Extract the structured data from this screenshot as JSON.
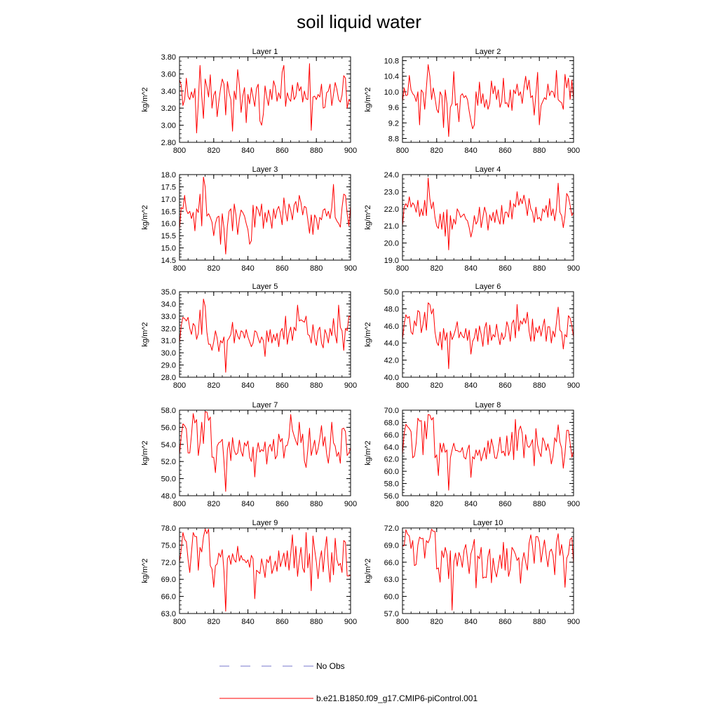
{
  "title": "soil liquid water",
  "legend": {
    "obs_label": "No Obs",
    "obs_color": "#7777cc",
    "model_label": "b.e21.B1850.f09_g17.CMIP6-piControl.001",
    "model_color": "#ff0000"
  },
  "chart_data": [
    {
      "type": "line",
      "title": "Layer 1",
      "ylabel": "kg/m^2",
      "xlim": [
        800,
        900
      ],
      "xticks": [
        "800",
        "820",
        "840",
        "860",
        "880",
        "900"
      ],
      "ylim": [
        2.8,
        3.8
      ],
      "yticks": [
        "2.80",
        "3.00",
        "3.20",
        "3.40",
        "3.60",
        "3.80"
      ],
      "x_start": 800,
      "x_step": 1,
      "values": [
        3.53,
        3.47,
        3.23,
        3.3,
        3.55,
        3.34,
        3.3,
        3.39,
        3.32,
        3.43,
        2.91,
        3.27,
        3.7,
        3.34,
        3.08,
        3.54,
        3.45,
        3.33,
        3.59,
        3.2,
        3.35,
        3.4,
        3.1,
        3.28,
        3.43,
        3.54,
        3.48,
        3.12,
        3.51,
        3.38,
        3.3,
        2.93,
        3.4,
        3.3,
        3.65,
        3.47,
        3.15,
        3.34,
        3.44,
        3.03,
        3.36,
        3.25,
        3.44,
        3.33,
        3.22,
        3.43,
        3.48,
        3.05,
        3.0,
        3.13,
        3.46,
        3.33,
        3.23,
        3.42,
        3.3,
        3.52,
        3.45,
        3.28,
        3.38,
        3.31,
        3.62,
        3.7,
        3.22,
        3.38,
        3.31,
        3.28,
        3.47,
        3.3,
        3.34,
        3.5,
        3.4,
        3.45,
        3.27,
        3.4,
        3.31,
        3.3,
        3.72,
        2.94,
        3.33,
        3.34,
        3.3,
        3.36,
        3.33,
        3.48,
        3.2,
        3.21,
        3.38,
        3.4,
        3.48,
        3.23,
        3.36,
        3.5,
        3.42,
        3.3,
        3.27,
        3.35,
        3.58,
        3.55,
        3.2,
        3.3,
        3.27
      ]
    },
    {
      "type": "line",
      "title": "Layer 2",
      "ylabel": "kg/m^2",
      "xlim": [
        800,
        900
      ],
      "xticks": [
        "800",
        "820",
        "840",
        "860",
        "880",
        "900"
      ],
      "ylim": [
        8.7,
        10.9
      ],
      "yticks": [
        "8.8",
        "9.2",
        "9.6",
        "10.0",
        "10.4",
        "10.8"
      ],
      "x_start": 800,
      "x_step": 1,
      "values": [
        9.75,
        10.1,
        9.9,
        9.92,
        10.42,
        10.05,
        9.95,
        9.9,
        9.75,
        10.0,
        9.15,
        10.05,
        9.98,
        9.55,
        10.12,
        10.7,
        10.4,
        9.8,
        10.1,
        9.85,
        9.55,
        9.46,
        10.0,
        9.9,
        9.08,
        10.05,
        9.7,
        8.85,
        9.6,
        9.7,
        10.52,
        9.65,
        9.7,
        9.23,
        9.9,
        9.95,
        9.85,
        9.9,
        9.8,
        9.5,
        9.25,
        9.05,
        9.15,
        10.0,
        9.65,
        10.25,
        9.7,
        9.95,
        9.6,
        9.8,
        9.55,
        9.7,
        10.28,
        9.95,
        10.15,
        9.8,
        10.05,
        9.6,
        9.75,
        10.35,
        9.7,
        9.72,
        9.6,
        10.05,
        9.52,
        10.05,
        9.95,
        10.2,
        9.9,
        10.0,
        9.7,
        10.1,
        10.4,
        10.05,
        10.3,
        9.85,
        9.9,
        9.4,
        9.95,
        10.5,
        9.15,
        9.65,
        9.75,
        9.85,
        9.8,
        10.2,
        9.9,
        10.02,
        10.0,
        9.85,
        10.55,
        9.8,
        9.75,
        9.72,
        9.55,
        10.45,
        10.1,
        10.35,
        9.8,
        10.3,
        9.8
      ]
    },
    {
      "type": "line",
      "title": "Layer 3",
      "ylabel": "kg/m^2",
      "xlim": [
        800,
        900
      ],
      "xticks": [
        "800",
        "820",
        "840",
        "860",
        "880",
        "900"
      ],
      "ylim": [
        14.5,
        18.0
      ],
      "yticks": [
        "14.5",
        "15.0",
        "15.5",
        "16.0",
        "16.5",
        "17.0",
        "17.5",
        "18.0"
      ],
      "x_start": 800,
      "x_step": 1,
      "values": [
        15.75,
        16.65,
        16.6,
        17.15,
        16.55,
        16.4,
        16.5,
        16.2,
        16.45,
        15.7,
        16.6,
        16.45,
        17.2,
        15.9,
        17.9,
        17.5,
        16.3,
        16.4,
        16.25,
        16.05,
        15.5,
        16.0,
        16.25,
        16.3,
        15.15,
        16.4,
        15.8,
        14.75,
        15.9,
        16.5,
        16.6,
        15.7,
        16.8,
        16.35,
        15.55,
        16.2,
        16.55,
        16.45,
        16.3,
        16.0,
        15.75,
        15.15,
        15.3,
        16.75,
        15.85,
        16.7,
        16.55,
        16.3,
        16.8,
        15.8,
        16.45,
        16.05,
        16.55,
        16.25,
        15.8,
        16.6,
        16.2,
        16.55,
        16.7,
        16.4,
        15.95,
        17.05,
        16.5,
        16.1,
        16.8,
        16.55,
        16.15,
        16.75,
        16.9,
        16.45,
        17.15,
        16.85,
        16.35,
        16.7,
        16.65,
        16.15,
        15.6,
        16.35,
        15.55,
        16.35,
        16.2,
        15.75,
        16.25,
        16.15,
        16.55,
        16.6,
        16.3,
        16.5,
        16.2,
        16.65,
        17.6,
        16.25,
        16.1,
        16.0,
        15.85,
        16.65,
        17.2,
        17.15,
        16.4,
        15.9,
        16.7
      ]
    },
    {
      "type": "line",
      "title": "Layer 4",
      "ylabel": "kg/m^2",
      "xlim": [
        800,
        900
      ],
      "xticks": [
        "800",
        "820",
        "840",
        "860",
        "880",
        "900"
      ],
      "ylim": [
        19.0,
        24.0
      ],
      "yticks": [
        "19.0",
        "20.0",
        "21.0",
        "22.0",
        "23.0",
        "24.0"
      ],
      "x_start": 800,
      "x_step": 1,
      "values": [
        21.0,
        22.1,
        22.3,
        22.1,
        22.7,
        22.1,
        22.35,
        22.2,
        21.8,
        22.5,
        21.55,
        22.0,
        21.6,
        22.5,
        21.6,
        23.8,
        22.6,
        22.0,
        22.4,
        21.5,
        21.0,
        20.85,
        21.7,
        20.8,
        21.8,
        20.4,
        21.95,
        19.6,
        21.6,
        20.8,
        21.4,
        21.1,
        22.0,
        21.8,
        21.5,
        21.6,
        21.7,
        21.4,
        21.3,
        20.9,
        20.35,
        20.8,
        21.6,
        21.1,
        21.3,
        22.1,
        20.9,
        21.5,
        22.1,
        21.7,
        20.75,
        21.65,
        21.3,
        21.8,
        21.2,
        21.95,
        21.4,
        21.1,
        22.2,
        21.1,
        21.8,
        21.8,
        21.5,
        22.5,
        21.4,
        22.3,
        22.1,
        23.0,
        22.2,
        22.6,
        22.3,
        22.8,
        22.3,
        21.6,
        22.6,
        22.0,
        21.8,
        21.2,
        22.1,
        21.4,
        21.5,
        21.3,
        22.0,
        21.8,
        22.2,
        21.5,
        22.6,
        21.6,
        22.0,
        21.3,
        22.0,
        23.5,
        21.8,
        21.6,
        20.9,
        21.6,
        22.9,
        22.7,
        22.2,
        21.6,
        21.8
      ]
    },
    {
      "type": "line",
      "title": "Layer 5",
      "ylabel": "kg/m^2",
      "xlim": [
        800,
        900
      ],
      "xticks": [
        "800",
        "820",
        "840",
        "860",
        "880",
        "900"
      ],
      "ylim": [
        28.0,
        35.0
      ],
      "yticks": [
        "28.0",
        "29.0",
        "30.0",
        "31.0",
        "32.0",
        "33.0",
        "34.0",
        "35.0"
      ],
      "x_start": 800,
      "x_step": 1,
      "values": [
        30.8,
        32.2,
        32.9,
        32.8,
        32.6,
        32.9,
        32.0,
        31.5,
        32.4,
        32.2,
        31.1,
        31.6,
        33.5,
        31.5,
        34.4,
        33.8,
        31.7,
        30.7,
        30.7,
        30.2,
        30.9,
        31.8,
        31.2,
        30.1,
        31.0,
        30.8,
        31.3,
        28.4,
        31.0,
        31.2,
        31.5,
        32.5,
        30.8,
        31.9,
        31.4,
        31.1,
        31.8,
        31.7,
        31.2,
        31.9,
        31.3,
        30.9,
        30.5,
        30.8,
        31.8,
        31.7,
        31.2,
        30.8,
        31.3,
        31.0,
        29.7,
        31.8,
        30.9,
        31.9,
        30.8,
        31.5,
        31.0,
        31.6,
        30.5,
        31.7,
        32.0,
        31.1,
        33.0,
        30.7,
        31.6,
        32.1,
        31.0,
        32.1,
        31.8,
        33.9,
        32.6,
        32.7,
        32.6,
        32.5,
        33.0,
        31.5,
        31.4,
        30.8,
        32.3,
        31.2,
        30.6,
        31.8,
        32.1,
        30.8,
        30.4,
        31.9,
        31.5,
        30.8,
        32.0,
        31.4,
        32.8,
        31.5,
        30.8,
        33.9,
        32.1,
        31.8,
        30.2,
        32.0,
        31.8,
        33.0,
        32.9
      ]
    },
    {
      "type": "line",
      "title": "Layer 6",
      "ylabel": "kg/m^2",
      "xlim": [
        800,
        900
      ],
      "xticks": [
        "800",
        "820",
        "840",
        "860",
        "880",
        "900"
      ],
      "ylim": [
        40.0,
        50.0
      ],
      "yticks": [
        "40.0",
        "42.0",
        "44.0",
        "46.0",
        "48.0",
        "50.0"
      ],
      "x_start": 800,
      "x_step": 1,
      "values": [
        44.4,
        46.2,
        47.3,
        46.9,
        47.1,
        45.3,
        45.0,
        46.6,
        46.0,
        47.8,
        47.6,
        45.2,
        46.2,
        47.6,
        45.5,
        48.7,
        48.5,
        47.4,
        48.0,
        45.3,
        44.1,
        43.7,
        45.3,
        43.2,
        45.7,
        44.3,
        45.2,
        41.0,
        45.4,
        44.4,
        44.9,
        45.6,
        46.5,
        44.6,
        45.3,
        44.8,
        44.6,
        45.7,
        44.3,
        45.5,
        42.7,
        44.2,
        44.6,
        45.7,
        44.2,
        46.0,
        45.0,
        43.6,
        45.7,
        46.4,
        43.8,
        46.1,
        44.3,
        45.0,
        44.7,
        46.2,
        44.8,
        43.8,
        45.2,
        44.4,
        44.8,
        46.5,
        45.8,
        44.2,
        46.3,
        46.7,
        44.6,
        48.5,
        45.4,
        46.6,
        46.2,
        46.9,
        46.3,
        47.6,
        45.4,
        44.2,
        46.8,
        44.2,
        45.8,
        45.2,
        46.0,
        44.8,
        45.9,
        46.8,
        44.2,
        45.9,
        45.9,
        44.0,
        45.4,
        44.7,
        46.4,
        48.2,
        45.5,
        45.3,
        43.3,
        45.0,
        44.7,
        47.2,
        46.9,
        46.0,
        44.7
      ]
    },
    {
      "type": "line",
      "title": "Layer 7",
      "ylabel": "kg/m^2",
      "xlim": [
        800,
        900
      ],
      "xticks": [
        "800",
        "820",
        "840",
        "860",
        "880",
        "900"
      ],
      "ylim": [
        48.0,
        58.0
      ],
      "yticks": [
        "48.0",
        "50.0",
        "52.0",
        "54.0",
        "56.0",
        "58.0"
      ],
      "x_start": 800,
      "x_step": 1,
      "values": [
        52.8,
        54.9,
        56.4,
        56.2,
        55.8,
        53.0,
        53.0,
        55.1,
        57.6,
        56.5,
        56.9,
        52.7,
        54.2,
        56.6,
        54.1,
        57.8,
        57.8,
        56.8,
        57.2,
        52.5,
        52.5,
        50.7,
        53.8,
        54.2,
        54.3,
        54.6,
        52.0,
        48.5,
        53.4,
        54.3,
        52.1,
        54.8,
        53.3,
        52.8,
        53.0,
        54.5,
        53.2,
        52.6,
        54.2,
        53.8,
        54.4,
        52.5,
        52.0,
        53.7,
        50.2,
        53.0,
        54.2,
        53.1,
        53.4,
        53.2,
        54.3,
        51.7,
        53.6,
        54.0,
        53.2,
        54.6,
        52.3,
        52.7,
        55.2,
        54.3,
        54.7,
        52.4,
        53.8,
        53.9,
        54.8,
        57.5,
        55.7,
        55.0,
        54.4,
        53.9,
        56.6,
        54.2,
        55.2,
        52.1,
        51.3,
        53.4,
        55.9,
        52.7,
        53.6,
        54.5,
        52.8,
        53.5,
        54.7,
        56.2,
        53.8,
        54.9,
        52.9,
        51.8,
        53.7,
        56.6,
        54.2,
        53.8,
        52.6,
        53.1,
        51.8,
        55.8,
        55.9,
        55.5,
        52.7,
        53.0,
        53.6
      ]
    },
    {
      "type": "line",
      "title": "Layer 8",
      "ylabel": "kg/m^2",
      "xlim": [
        800,
        900
      ],
      "xticks": [
        "800",
        "820",
        "840",
        "860",
        "880",
        "900"
      ],
      "ylim": [
        56.0,
        70.0
      ],
      "yticks": [
        "56.0",
        "58.0",
        "60.0",
        "62.0",
        "64.0",
        "66.0",
        "68.0",
        "70.0"
      ],
      "x_start": 800,
      "x_step": 1,
      "values": [
        62.8,
        66.2,
        67.7,
        67.3,
        67.0,
        66.5,
        62.2,
        62.5,
        64.6,
        68.7,
        68.2,
        68.3,
        62.7,
        68.2,
        65.3,
        69.3,
        69.2,
        68.4,
        68.8,
        62.2,
        62.7,
        59.3,
        64.6,
        63.1,
        64.6,
        63.1,
        63.5,
        56.9,
        62.2,
        63.5,
        64.6,
        63.4,
        63.4,
        63.2,
        63.2,
        63.9,
        62.3,
        62.0,
        63.5,
        64.3,
        59.0,
        62.4,
        62.0,
        63.5,
        62.6,
        63.5,
        61.7,
        62.7,
        63.9,
        62.0,
        65.0,
        62.9,
        65.3,
        64.0,
        62.2,
        62.1,
        63.5,
        65.6,
        63.0,
        63.3,
        62.5,
        65.8,
        62.6,
        63.5,
        66.4,
        61.9,
        68.5,
        63.4,
        66.7,
        67.4,
        66.2,
        62.2,
        66.0,
        64.2,
        63.9,
        64.4,
        65.2,
        60.9,
        67.0,
        64.3,
        63.1,
        62.4,
        65.5,
        64.8,
        63.4,
        64.5,
        63.3,
        61.2,
        62.5,
        65.5,
        64.8,
        67.6,
        64.8,
        63.8,
        60.5,
        62.9,
        66.7,
        66.7,
        64.6,
        62.3,
        63.3
      ]
    },
    {
      "type": "line",
      "title": "Layer 9",
      "ylabel": "kg/m^2",
      "xlim": [
        800,
        900
      ],
      "xticks": [
        "800",
        "820",
        "840",
        "860",
        "880",
        "900"
      ],
      "ylim": [
        63.0,
        78.0
      ],
      "yticks": [
        "63.0",
        "66.0",
        "69.0",
        "72.0",
        "75.0",
        "78.0"
      ],
      "x_start": 800,
      "x_step": 1,
      "values": [
        72.0,
        74.2,
        77.2,
        76.0,
        75.6,
        72.5,
        70.2,
        73.8,
        77.2,
        76.5,
        76.5,
        70.6,
        74.6,
        73.8,
        76.4,
        77.8,
        77.0,
        77.8,
        71.4,
        70.8,
        67.6,
        71.4,
        71.7,
        73.6,
        72.9,
        74.2,
        70.4,
        63.4,
        72.6,
        73.2,
        71.6,
        73.5,
        72.4,
        72.0,
        74.8,
        72.2,
        73.2,
        72.4,
        72.4,
        71.9,
        72.4,
        71.1,
        73.2,
        72.6,
        65.6,
        70.6,
        70.3,
        70.0,
        72.6,
        71.1,
        69.3,
        72.5,
        71.9,
        73.1,
        70.0,
        71.0,
        72.2,
        70.4,
        74.0,
        71.2,
        72.4,
        73.6,
        71.2,
        74.0,
        70.6,
        73.4,
        76.8,
        71.0,
        74.8,
        69.5,
        72.4,
        74.6,
        71.0,
        70.2,
        77.2,
        71.0,
        73.5,
        67.0,
        76.6,
        74.2,
        72.0,
        69.1,
        72.4,
        74.0,
        70.3,
        74.1,
        76.5,
        71.5,
        68.5,
        73.7,
        69.8,
        76.2,
        72.5,
        71.4,
        71.8,
        70.2,
        75.8,
        75.5,
        69.6,
        69.6,
        69.7
      ]
    },
    {
      "type": "line",
      "title": "Layer 10",
      "ylabel": "kg/m^2",
      "xlim": [
        800,
        900
      ],
      "xticks": [
        "800",
        "820",
        "840",
        "860",
        "880",
        "900"
      ],
      "ylim": [
        57.0,
        72.0
      ],
      "yticks": [
        "57.0",
        "60.0",
        "63.0",
        "66.0",
        "69.0",
        "72.0"
      ],
      "x_start": 800,
      "x_step": 1,
      "values": [
        68.8,
        68.9,
        71.7,
        70.9,
        70.6,
        68.4,
        69.8,
        65.4,
        65.6,
        69.0,
        70.4,
        70.1,
        70.2,
        66.7,
        69.8,
        69.4,
        70.2,
        71.8,
        71.4,
        71.4,
        64.8,
        65.0,
        62.5,
        68.0,
        66.8,
        68.6,
        67.3,
        63.1,
        68.0,
        57.6,
        66.0,
        67.6,
        65.3,
        67.7,
        66.8,
        65.1,
        68.1,
        69.1,
        66.6,
        64.0,
        67.5,
        68.5,
        70.0,
        61.5,
        67.1,
        66.6,
        68.6,
        63.2,
        63.4,
        63.3,
        67.0,
        68.3,
        62.4,
        66.7,
        64.6,
        63.4,
        65.3,
        67.3,
        64.9,
        69.5,
        64.6,
        68.4,
        63.5,
        64.8,
        68.6,
        68.1,
        67.4,
        66.3,
        66.8,
        62.3,
        66.0,
        67.7,
        66.0,
        64.6,
        69.3,
        70.8,
        68.8,
        65.8,
        70.5,
        70.5,
        69.5,
        66.0,
        68.1,
        69.9,
        67.3,
        65.2,
        67.8,
        68.3,
        67.2,
        63.8,
        69.5,
        71.0,
        67.2,
        69.1,
        67.0,
        61.6,
        66.7,
        67.4,
        70.0,
        70.3,
        65.8
      ]
    }
  ]
}
